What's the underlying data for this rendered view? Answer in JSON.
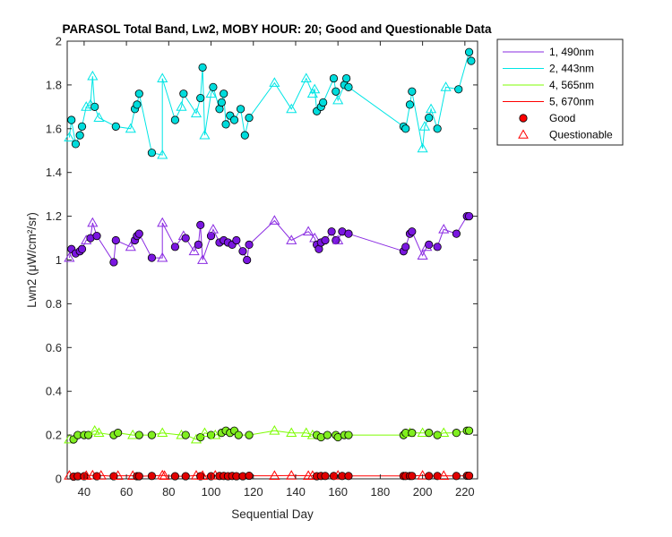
{
  "chart_data": {
    "type": "line",
    "title": "PARASOL Total Band, Lw2, MOBY HOUR: 20;  Good and Questionable Data",
    "xlabel": "Sequential Day",
    "ylabel": "Lwn2 (μW/cm²/sr)",
    "xlim": [
      32,
      226
    ],
    "ylim": [
      0,
      2
    ],
    "xticks": [
      40,
      60,
      80,
      100,
      120,
      140,
      160,
      180,
      200,
      220
    ],
    "yticks": [
      0,
      0.2,
      0.4,
      0.6,
      0.8,
      1,
      1.2,
      1.4,
      1.6,
      1.8,
      2
    ],
    "ytick_labels": [
      "0",
      "0.2",
      "0.4",
      "0.6",
      "0.8",
      "1",
      "1.2",
      "1.4",
      "1.6",
      "1.8",
      "2"
    ],
    "legend": {
      "placement": "outside-right-top",
      "entries": [
        {
          "label": "1, 490nm",
          "kind": "line",
          "color": "#8a2be2"
        },
        {
          "label": "2, 443nm",
          "kind": "line",
          "color": "#00e5e5"
        },
        {
          "label": "4, 565nm",
          "kind": "line",
          "color": "#7cfc00"
        },
        {
          "label": "5, 670nm",
          "kind": "line",
          "color": "#ff0000"
        },
        {
          "label": "Good",
          "kind": "circle",
          "color": "#ff0000"
        },
        {
          "label": "Questionable",
          "kind": "triangle",
          "color": "#ff0000"
        }
      ]
    },
    "series": [
      {
        "name": "1, 490nm",
        "line_color": "#8a2be2",
        "marker_face": "#7a16e0",
        "points": [
          [
            33,
            1.01,
            "q"
          ],
          [
            34,
            1.05,
            "g"
          ],
          [
            36,
            1.03,
            "g"
          ],
          [
            38,
            1.04,
            "g"
          ],
          [
            39,
            1.05,
            "g"
          ],
          [
            41,
            1.09,
            "q"
          ],
          [
            43,
            1.1,
            "g"
          ],
          [
            44,
            1.17,
            "q"
          ],
          [
            46,
            1.11,
            "g"
          ],
          [
            54,
            0.99,
            "g"
          ],
          [
            55,
            1.09,
            "g"
          ],
          [
            62,
            1.06,
            "q"
          ],
          [
            64,
            1.09,
            "g"
          ],
          [
            65,
            1.11,
            "g"
          ],
          [
            66,
            1.12,
            "g"
          ],
          [
            72,
            1.01,
            "g"
          ],
          [
            77,
            1.01,
            "q"
          ],
          [
            77,
            1.17,
            "q"
          ],
          [
            83,
            1.06,
            "g"
          ],
          [
            87,
            1.11,
            "q"
          ],
          [
            88,
            1.1,
            "g"
          ],
          [
            92,
            1.04,
            "q"
          ],
          [
            94,
            1.07,
            "g"
          ],
          [
            95,
            1.16,
            "g"
          ],
          [
            96,
            1.0,
            "q"
          ],
          [
            100,
            1.11,
            "g"
          ],
          [
            101,
            1.14,
            "q"
          ],
          [
            104,
            1.08,
            "g"
          ],
          [
            106,
            1.09,
            "g"
          ],
          [
            108,
            1.08,
            "g"
          ],
          [
            110,
            1.07,
            "g"
          ],
          [
            112,
            1.09,
            "g"
          ],
          [
            115,
            1.04,
            "g"
          ],
          [
            117,
            1.0,
            "g"
          ],
          [
            118,
            1.07,
            "g"
          ],
          [
            130,
            1.18,
            "q"
          ],
          [
            138,
            1.09,
            "q"
          ],
          [
            146,
            1.13,
            "q"
          ],
          [
            149,
            1.1,
            "q"
          ],
          [
            150,
            1.07,
            "g"
          ],
          [
            151,
            1.05,
            "g"
          ],
          [
            152,
            1.08,
            "g"
          ],
          [
            154,
            1.09,
            "g"
          ],
          [
            157,
            1.13,
            "g"
          ],
          [
            159,
            1.09,
            "g"
          ],
          [
            160,
            1.09,
            "q"
          ],
          [
            162,
            1.13,
            "g"
          ],
          [
            165,
            1.12,
            "g"
          ],
          [
            191,
            1.04,
            "g"
          ],
          [
            192,
            1.06,
            "g"
          ],
          [
            194,
            1.12,
            "g"
          ],
          [
            195,
            1.13,
            "g"
          ],
          [
            200,
            1.02,
            "q"
          ],
          [
            202,
            1.06,
            "q"
          ],
          [
            203,
            1.07,
            "g"
          ],
          [
            207,
            1.06,
            "g"
          ],
          [
            210,
            1.14,
            "q"
          ],
          [
            216,
            1.12,
            "g"
          ],
          [
            221,
            1.2,
            "g"
          ],
          [
            222,
            1.2,
            "g"
          ]
        ]
      },
      {
        "name": "2, 443nm",
        "line_color": "#00e5e5",
        "marker_face": "#00dcdc",
        "points": [
          [
            33,
            1.56,
            "q"
          ],
          [
            34,
            1.64,
            "g"
          ],
          [
            36,
            1.53,
            "g"
          ],
          [
            38,
            1.57,
            "g"
          ],
          [
            39,
            1.61,
            "g"
          ],
          [
            41,
            1.7,
            "q"
          ],
          [
            43,
            1.71,
            "q"
          ],
          [
            44,
            1.84,
            "q"
          ],
          [
            45,
            1.7,
            "g"
          ],
          [
            47,
            1.65,
            "q"
          ],
          [
            55,
            1.61,
            "g"
          ],
          [
            62,
            1.6,
            "q"
          ],
          [
            64,
            1.69,
            "g"
          ],
          [
            65,
            1.71,
            "g"
          ],
          [
            66,
            1.76,
            "g"
          ],
          [
            72,
            1.49,
            "g"
          ],
          [
            77,
            1.48,
            "q"
          ],
          [
            77,
            1.83,
            "q"
          ],
          [
            83,
            1.64,
            "g"
          ],
          [
            86,
            1.7,
            "q"
          ],
          [
            87,
            1.76,
            "g"
          ],
          [
            93,
            1.67,
            "q"
          ],
          [
            95,
            1.74,
            "g"
          ],
          [
            96,
            1.88,
            "g"
          ],
          [
            97,
            1.57,
            "q"
          ],
          [
            100,
            1.76,
            "q"
          ],
          [
            101,
            1.79,
            "g"
          ],
          [
            104,
            1.69,
            "g"
          ],
          [
            105,
            1.72,
            "g"
          ],
          [
            106,
            1.76,
            "g"
          ],
          [
            107,
            1.62,
            "g"
          ],
          [
            109,
            1.66,
            "g"
          ],
          [
            111,
            1.64,
            "g"
          ],
          [
            114,
            1.69,
            "g"
          ],
          [
            116,
            1.57,
            "g"
          ],
          [
            118,
            1.65,
            "g"
          ],
          [
            130,
            1.81,
            "q"
          ],
          [
            138,
            1.69,
            "q"
          ],
          [
            145,
            1.83,
            "q"
          ],
          [
            148,
            1.76,
            "q"
          ],
          [
            149,
            1.78,
            "q"
          ],
          [
            150,
            1.68,
            "g"
          ],
          [
            152,
            1.7,
            "g"
          ],
          [
            153,
            1.72,
            "g"
          ],
          [
            158,
            1.83,
            "g"
          ],
          [
            159,
            1.77,
            "g"
          ],
          [
            160,
            1.73,
            "q"
          ],
          [
            163,
            1.8,
            "g"
          ],
          [
            164,
            1.83,
            "g"
          ],
          [
            165,
            1.79,
            "g"
          ],
          [
            191,
            1.61,
            "g"
          ],
          [
            192,
            1.6,
            "g"
          ],
          [
            194,
            1.71,
            "g"
          ],
          [
            195,
            1.77,
            "g"
          ],
          [
            200,
            1.51,
            "q"
          ],
          [
            201,
            1.61,
            "q"
          ],
          [
            203,
            1.65,
            "g"
          ],
          [
            204,
            1.69,
            "q"
          ],
          [
            207,
            1.6,
            "g"
          ],
          [
            211,
            1.79,
            "q"
          ],
          [
            217,
            1.78,
            "g"
          ],
          [
            222,
            1.95,
            "g"
          ],
          [
            223,
            1.91,
            "g"
          ]
        ]
      },
      {
        "name": "4, 565nm",
        "line_color": "#7cfc00",
        "marker_face": "#80ee20",
        "points": [
          [
            33,
            0.18,
            "q"
          ],
          [
            35,
            0.18,
            "g"
          ],
          [
            37,
            0.2,
            "g"
          ],
          [
            40,
            0.2,
            "g"
          ],
          [
            42,
            0.2,
            "g"
          ],
          [
            45,
            0.22,
            "q"
          ],
          [
            47,
            0.21,
            "q"
          ],
          [
            54,
            0.2,
            "g"
          ],
          [
            56,
            0.21,
            "g"
          ],
          [
            63,
            0.2,
            "q"
          ],
          [
            66,
            0.2,
            "g"
          ],
          [
            72,
            0.2,
            "g"
          ],
          [
            77,
            0.21,
            "q"
          ],
          [
            86,
            0.2,
            "q"
          ],
          [
            88,
            0.2,
            "g"
          ],
          [
            93,
            0.18,
            "q"
          ],
          [
            95,
            0.19,
            "g"
          ],
          [
            97,
            0.21,
            "q"
          ],
          [
            100,
            0.2,
            "g"
          ],
          [
            102,
            0.2,
            "q"
          ],
          [
            105,
            0.21,
            "g"
          ],
          [
            107,
            0.22,
            "g"
          ],
          [
            109,
            0.21,
            "g"
          ],
          [
            111,
            0.22,
            "g"
          ],
          [
            113,
            0.2,
            "g"
          ],
          [
            118,
            0.2,
            "g"
          ],
          [
            130,
            0.22,
            "q"
          ],
          [
            138,
            0.21,
            "q"
          ],
          [
            145,
            0.21,
            "q"
          ],
          [
            148,
            0.2,
            "q"
          ],
          [
            150,
            0.2,
            "g"
          ],
          [
            152,
            0.19,
            "g"
          ],
          [
            155,
            0.2,
            "g"
          ],
          [
            159,
            0.2,
            "g"
          ],
          [
            160,
            0.19,
            "g"
          ],
          [
            163,
            0.2,
            "g"
          ],
          [
            165,
            0.2,
            "g"
          ],
          [
            191,
            0.2,
            "g"
          ],
          [
            192,
            0.21,
            "g"
          ],
          [
            194,
            0.21,
            "q"
          ],
          [
            195,
            0.21,
            "g"
          ],
          [
            200,
            0.21,
            "q"
          ],
          [
            203,
            0.21,
            "g"
          ],
          [
            207,
            0.2,
            "g"
          ],
          [
            210,
            0.21,
            "q"
          ],
          [
            216,
            0.21,
            "g"
          ],
          [
            221,
            0.22,
            "g"
          ],
          [
            222,
            0.22,
            "g"
          ]
        ]
      },
      {
        "name": "5, 670nm",
        "line_color": "#ff0000",
        "marker_face": "#e00000",
        "points": [
          [
            33,
            0.015,
            "q"
          ],
          [
            35,
            0.01,
            "g"
          ],
          [
            37,
            0.012,
            "g"
          ],
          [
            40,
            0.012,
            "g"
          ],
          [
            41,
            0.014,
            "q"
          ],
          [
            44,
            0.016,
            "q"
          ],
          [
            46,
            0.012,
            "g"
          ],
          [
            48,
            0.015,
            "q"
          ],
          [
            54,
            0.012,
            "g"
          ],
          [
            56,
            0.014,
            "q"
          ],
          [
            63,
            0.014,
            "q"
          ],
          [
            65,
            0.012,
            "g"
          ],
          [
            66,
            0.012,
            "g"
          ],
          [
            72,
            0.013,
            "g"
          ],
          [
            77,
            0.016,
            "q"
          ],
          [
            78,
            0.014,
            "q"
          ],
          [
            83,
            0.012,
            "g"
          ],
          [
            88,
            0.012,
            "g"
          ],
          [
            93,
            0.015,
            "q"
          ],
          [
            95,
            0.012,
            "g"
          ],
          [
            96,
            0.014,
            "q"
          ],
          [
            100,
            0.012,
            "g"
          ],
          [
            102,
            0.015,
            "q"
          ],
          [
            104,
            0.013,
            "g"
          ],
          [
            106,
            0.013,
            "g"
          ],
          [
            108,
            0.012,
            "g"
          ],
          [
            110,
            0.013,
            "g"
          ],
          [
            112,
            0.012,
            "g"
          ],
          [
            115,
            0.012,
            "g"
          ],
          [
            118,
            0.014,
            "g"
          ],
          [
            130,
            0.014,
            "q"
          ],
          [
            138,
            0.015,
            "q"
          ],
          [
            146,
            0.014,
            "q"
          ],
          [
            148,
            0.014,
            "q"
          ],
          [
            150,
            0.012,
            "g"
          ],
          [
            152,
            0.013,
            "g"
          ],
          [
            154,
            0.013,
            "g"
          ],
          [
            158,
            0.013,
            "g"
          ],
          [
            160,
            0.015,
            "q"
          ],
          [
            162,
            0.013,
            "g"
          ],
          [
            165,
            0.013,
            "g"
          ],
          [
            191,
            0.013,
            "g"
          ],
          [
            192,
            0.013,
            "g"
          ],
          [
            194,
            0.013,
            "g"
          ],
          [
            195,
            0.013,
            "g"
          ],
          [
            200,
            0.015,
            "q"
          ],
          [
            203,
            0.013,
            "g"
          ],
          [
            207,
            0.013,
            "g"
          ],
          [
            210,
            0.014,
            "q"
          ],
          [
            216,
            0.013,
            "g"
          ],
          [
            221,
            0.014,
            "g"
          ],
          [
            222,
            0.014,
            "g"
          ]
        ]
      }
    ]
  }
}
